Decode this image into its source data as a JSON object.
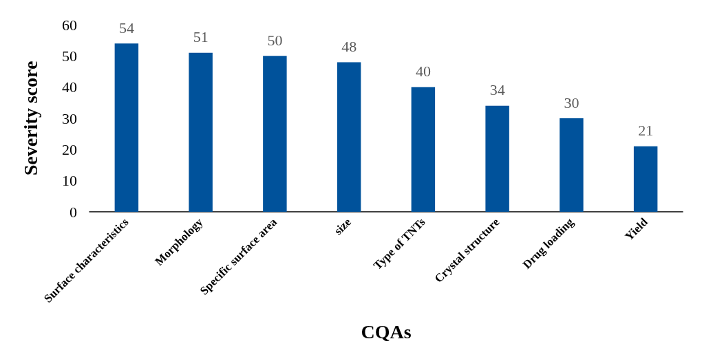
{
  "chart_data": {
    "type": "bar",
    "xlabel": "CQAs",
    "ylabel": "Severity score",
    "categories": [
      "Surface characteristics",
      "Morphology",
      "Specific surface area",
      "size",
      "Type of TNTs",
      "Crystal structure",
      "Drug loading",
      "Yield"
    ],
    "values": [
      54,
      51,
      50,
      48,
      40,
      34,
      30,
      21
    ],
    "color": "#00529b",
    "ylim": [
      0,
      60
    ],
    "yticks": [
      0,
      10,
      20,
      30,
      40,
      50,
      60
    ],
    "grid": false,
    "data_labels": true
  }
}
